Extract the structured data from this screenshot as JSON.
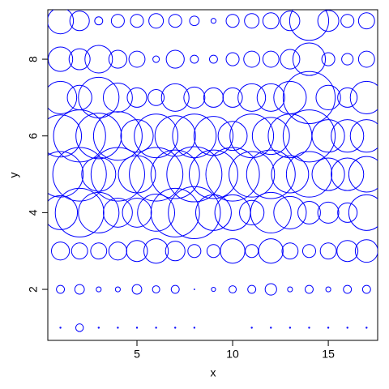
{
  "chart_data": {
    "type": "bubble",
    "xlabel": "x",
    "ylabel": "y",
    "color": "blue",
    "xlim": [
      0.34,
      17.58
    ],
    "ylim": [
      0.67,
      9.29
    ],
    "xticks": [
      5,
      10,
      15
    ],
    "yticks": [
      2,
      4,
      6,
      8
    ],
    "x": [
      1,
      2,
      3,
      4,
      5,
      6,
      7,
      8,
      9,
      10,
      11,
      12,
      13,
      14,
      15,
      16,
      17,
      1,
      2,
      3,
      4,
      5,
      6,
      7,
      8,
      9,
      10,
      11,
      12,
      13,
      14,
      15,
      16,
      17,
      1,
      2,
      3,
      4,
      5,
      6,
      7,
      8,
      9,
      10,
      11,
      12,
      13,
      14,
      15,
      16,
      17,
      1,
      2,
      3,
      4,
      5,
      6,
      7,
      8,
      9,
      10,
      11,
      12,
      13,
      14,
      15,
      16,
      17,
      1,
      2,
      3,
      4,
      5,
      6,
      7,
      8,
      9,
      10,
      11,
      12,
      13,
      14,
      15,
      16,
      17,
      1,
      2,
      3,
      4,
      5,
      6,
      7,
      8,
      9,
      10,
      11,
      12,
      13,
      14,
      15,
      16,
      17,
      1,
      2,
      3,
      4,
      5,
      6,
      7,
      8,
      9,
      10,
      11,
      12,
      13,
      14,
      15,
      16,
      17,
      1,
      2,
      3,
      4,
      5,
      6,
      7,
      8,
      9,
      10,
      11,
      12,
      13,
      14,
      15,
      16,
      17,
      1,
      2,
      3,
      4,
      5,
      6,
      7,
      8,
      9,
      10,
      11,
      12,
      13,
      14,
      15,
      16,
      17
    ],
    "y": [
      1,
      1,
      1,
      1,
      1,
      1,
      1,
      1,
      1,
      1,
      1,
      1,
      1,
      1,
      1,
      1,
      1,
      2,
      2,
      2,
      2,
      2,
      2,
      2,
      2,
      2,
      2,
      2,
      2,
      2,
      2,
      2,
      2,
      2,
      3,
      3,
      3,
      3,
      3,
      3,
      3,
      3,
      3,
      3,
      3,
      3,
      3,
      3,
      3,
      3,
      3,
      4,
      4,
      4,
      4,
      4,
      4,
      4,
      4,
      4,
      4,
      4,
      4,
      4,
      4,
      4,
      4,
      4,
      5,
      5,
      5,
      5,
      5,
      5,
      5,
      5,
      5,
      5,
      5,
      5,
      5,
      5,
      5,
      5,
      5,
      6,
      6,
      6,
      6,
      6,
      6,
      6,
      6,
      6,
      6,
      6,
      6,
      6,
      6,
      6,
      6,
      6,
      7,
      7,
      7,
      7,
      7,
      7,
      7,
      7,
      7,
      7,
      7,
      7,
      7,
      7,
      7,
      7,
      7,
      8,
      8,
      8,
      8,
      8,
      8,
      8,
      8,
      8,
      8,
      8,
      8,
      8,
      8,
      8,
      8,
      8,
      9,
      9,
      9,
      9,
      9,
      9,
      9,
      9,
      9,
      9,
      9,
      9,
      9,
      9,
      9,
      9,
      9
    ],
    "sizes": [
      0.03,
      0.2,
      0.03,
      0.03,
      0.03,
      0.03,
      0.03,
      0.03,
      0,
      0,
      0.03,
      0.03,
      0.03,
      0.03,
      0.03,
      0.03,
      0.03,
      0.21,
      0.25,
      0.13,
      0.13,
      0.25,
      0.19,
      0.21,
      0.02,
      0.11,
      0.19,
      0.21,
      0.3,
      0.13,
      0.21,
      0.13,
      0.21,
      0.21,
      0.47,
      0.42,
      0.42,
      0.47,
      0.55,
      0.64,
      0.51,
      0.34,
      0.34,
      0.64,
      0.34,
      0.64,
      0.42,
      0.34,
      0.42,
      0.55,
      0.59,
      0.89,
      1.27,
      1.06,
      0.76,
      0.76,
      0.97,
      1.27,
      1.36,
      0.93,
      0.93,
      0.64,
      1.06,
      0.85,
      0.59,
      0.55,
      0.51,
      0.93,
      1.19,
      1.4,
      0.89,
      1.4,
      0.97,
      1.4,
      1.27,
      1.44,
      1.27,
      1.4,
      1.19,
      1.27,
      0.97,
      1.19,
      0.85,
      0.85,
      0.93,
      1.1,
      1.36,
      1.19,
      1.27,
      0.85,
      1.14,
      1.06,
      1.14,
      1.02,
      0.76,
      1.14,
      0.97,
      1.14,
      1.36,
      0.85,
      0.85,
      0.85,
      0.85,
      0.64,
      1.06,
      0.76,
      0.51,
      0.42,
      0.72,
      0.55,
      0.51,
      0.51,
      0.72,
      0.72,
      0.85,
      1.36,
      0.64,
      0.51,
      0.85,
      0.64,
      0.55,
      0.72,
      0.47,
      0.42,
      0.17,
      0.47,
      0.21,
      0.21,
      0.34,
      0.42,
      0.42,
      0.51,
      0.85,
      0.34,
      0.3,
      0.42,
      0.68,
      0.51,
      0.21,
      0.34,
      0.34,
      0.38,
      0.34,
      0.25,
      0.13,
      0.34,
      0.38,
      0.42,
      0.51,
      1.02,
      0.55,
      0.34,
      0.42
    ]
  }
}
